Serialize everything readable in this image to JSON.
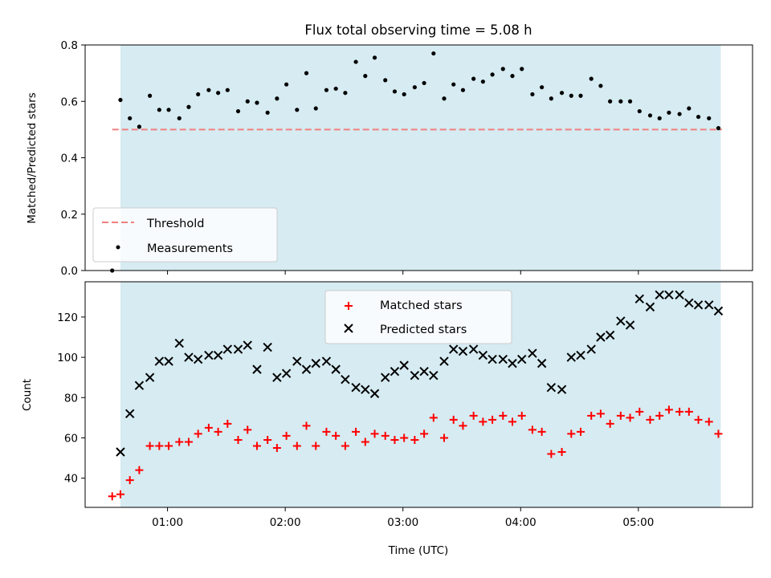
{
  "title": "Flux total observing time = 5.08 h",
  "colors": {
    "shade": "#add8e6",
    "threshold": "#f08080",
    "matched": "#ff0000",
    "predicted": "#000000",
    "measure": "#000000"
  },
  "chart_data": [
    {
      "type": "scatter",
      "ylabel": "Matched/Predicted stars",
      "xlim": [
        0.3,
        5.97
      ],
      "ylim": [
        0,
        0.8
      ],
      "yticks": [
        0.0,
        0.2,
        0.4,
        0.6,
        0.8
      ],
      "ytick_labels": [
        "0.0",
        "0.2",
        "0.4",
        "0.6",
        "0.8"
      ],
      "shaded_region": [
        0.6,
        5.7
      ],
      "legend": {
        "placement": "lower-left",
        "entries": [
          "Threshold",
          "Measurements"
        ]
      },
      "series": [
        {
          "name": "Threshold",
          "kind": "hline",
          "x": [
            0.53,
            5.71
          ],
          "y": 0.5
        },
        {
          "name": "Measurements",
          "kind": "points",
          "x": [
            0.53,
            0.6,
            0.68,
            0.76,
            0.85,
            0.93,
            1.01,
            1.1,
            1.18,
            1.26,
            1.35,
            1.43,
            1.51,
            1.6,
            1.68,
            1.76,
            1.85,
            1.93,
            2.01,
            2.1,
            2.18,
            2.26,
            2.35,
            2.43,
            2.51,
            2.6,
            2.68,
            2.76,
            2.85,
            2.93,
            3.01,
            3.1,
            3.18,
            3.26,
            3.35,
            3.43,
            3.51,
            3.6,
            3.68,
            3.76,
            3.85,
            3.93,
            4.01,
            4.1,
            4.18,
            4.26,
            4.35,
            4.43,
            4.51,
            4.6,
            4.68,
            4.76,
            4.85,
            4.93,
            5.01,
            5.1,
            5.18,
            5.26,
            5.35,
            5.43,
            5.51,
            5.6,
            5.68
          ],
          "y": [
            0.0,
            0.605,
            0.54,
            0.51,
            0.62,
            0.57,
            0.57,
            0.54,
            0.58,
            0.625,
            0.64,
            0.63,
            0.64,
            0.565,
            0.6,
            0.595,
            0.56,
            0.61,
            0.66,
            0.57,
            0.7,
            0.575,
            0.64,
            0.645,
            0.63,
            0.74,
            0.69,
            0.755,
            0.675,
            0.635,
            0.625,
            0.65,
            0.665,
            0.77,
            0.61,
            0.66,
            0.64,
            0.68,
            0.67,
            0.695,
            0.715,
            0.69,
            0.715,
            0.625,
            0.65,
            0.61,
            0.63,
            0.62,
            0.62,
            0.68,
            0.655,
            0.6,
            0.6,
            0.6,
            0.565,
            0.55,
            0.54,
            0.56,
            0.555,
            0.575,
            0.545,
            0.54,
            0.505
          ]
        }
      ]
    },
    {
      "type": "scatter",
      "xlabel": "Time (UTC)",
      "ylabel": "Count",
      "xlim": [
        0.3,
        5.97
      ],
      "ylim": [
        25.5,
        137.5
      ],
      "yticks": [
        40,
        60,
        80,
        100,
        120
      ],
      "ytick_labels": [
        "40",
        "60",
        "80",
        "100",
        "120"
      ],
      "xticks": [
        1,
        2,
        3,
        4,
        5
      ],
      "xtick_labels": [
        "01:00",
        "02:00",
        "03:00",
        "04:00",
        "05:00"
      ],
      "shaded_region": [
        0.6,
        5.7
      ],
      "legend": {
        "placement": "upper-center",
        "entries": [
          "Matched stars",
          "Predicted stars"
        ]
      },
      "series": [
        {
          "name": "Matched stars",
          "marker": "plus",
          "x": [
            0.53,
            0.6,
            0.68,
            0.76,
            0.85,
            0.93,
            1.01,
            1.1,
            1.18,
            1.26,
            1.35,
            1.43,
            1.51,
            1.6,
            1.68,
            1.76,
            1.85,
            1.93,
            2.01,
            2.1,
            2.18,
            2.26,
            2.35,
            2.43,
            2.51,
            2.6,
            2.68,
            2.76,
            2.85,
            2.93,
            3.01,
            3.1,
            3.18,
            3.26,
            3.35,
            3.43,
            3.51,
            3.6,
            3.68,
            3.76,
            3.85,
            3.93,
            4.01,
            4.1,
            4.18,
            4.26,
            4.35,
            4.43,
            4.51,
            4.6,
            4.68,
            4.76,
            4.85,
            4.93,
            5.01,
            5.1,
            5.18,
            5.26,
            5.35,
            5.43,
            5.51,
            5.6,
            5.68
          ],
          "y": [
            31,
            32,
            39,
            44,
            56,
            56,
            56,
            58,
            58,
            62,
            65,
            63,
            67,
            59,
            64,
            56,
            59,
            55,
            61,
            56,
            66,
            56,
            63,
            61,
            56,
            63,
            58,
            62,
            61,
            59,
            60,
            59,
            62,
            70,
            60,
            69,
            66,
            71,
            68,
            69,
            71,
            68,
            71,
            64,
            63,
            52,
            53,
            62,
            63,
            71,
            72,
            67,
            71,
            70,
            73,
            69,
            71,
            74,
            73,
            73,
            69,
            68,
            62
          ]
        },
        {
          "name": "Predicted stars",
          "marker": "x",
          "x": [
            0.6,
            0.68,
            0.76,
            0.85,
            0.93,
            1.01,
            1.1,
            1.18,
            1.26,
            1.35,
            1.43,
            1.51,
            1.6,
            1.68,
            1.76,
            1.85,
            1.93,
            2.01,
            2.1,
            2.18,
            2.26,
            2.35,
            2.43,
            2.51,
            2.6,
            2.68,
            2.76,
            2.85,
            2.93,
            3.01,
            3.1,
            3.18,
            3.26,
            3.35,
            3.43,
            3.51,
            3.6,
            3.68,
            3.76,
            3.85,
            3.93,
            4.01,
            4.1,
            4.18,
            4.26,
            4.35,
            4.43,
            4.51,
            4.6,
            4.68,
            4.76,
            4.85,
            4.93,
            5.01,
            5.1,
            5.18,
            5.26,
            5.35,
            5.43,
            5.51,
            5.6,
            5.68
          ],
          "y": [
            53,
            72,
            86,
            90,
            98,
            98,
            107,
            100,
            99,
            101,
            101,
            104,
            104,
            106,
            94,
            105,
            90,
            92,
            98,
            94,
            97,
            98,
            94,
            89,
            85,
            84,
            82,
            90,
            93,
            96,
            91,
            93,
            91,
            98,
            104,
            103,
            104,
            101,
            99,
            99,
            97,
            99,
            102,
            97,
            85,
            84,
            100,
            101,
            104,
            110,
            111,
            118,
            116,
            129,
            125,
            131,
            131,
            131,
            127,
            126,
            126,
            123
          ]
        }
      ]
    }
  ]
}
